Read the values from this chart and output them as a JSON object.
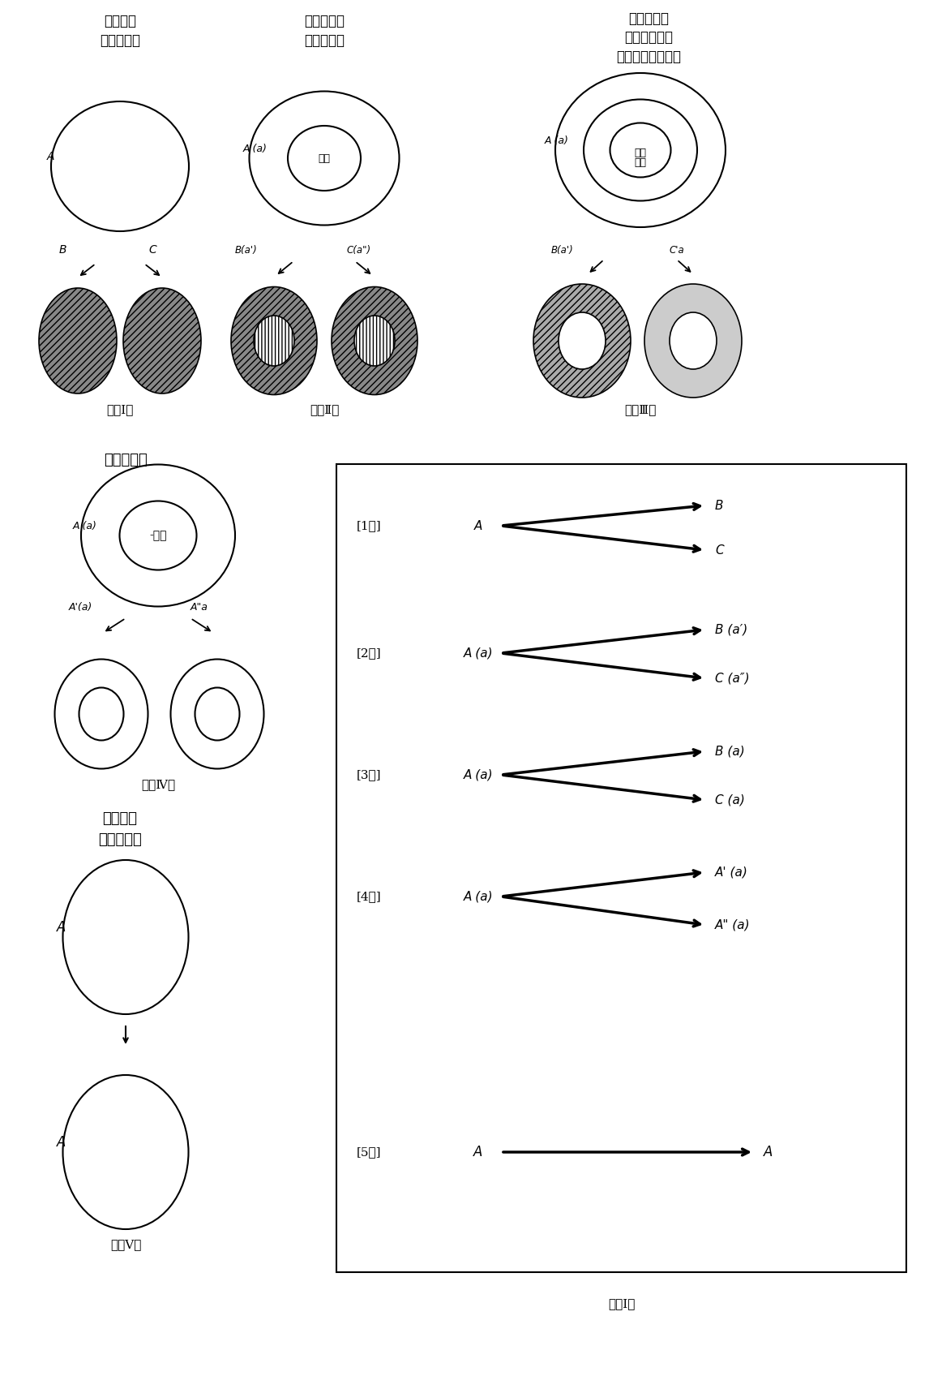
{
  "bg": "#ffffff",
  "s1t1": "形式陶治",
  "s1t2": "普遍的転移",
  "s2t1": "新形式陶治",
  "s2t2": "概念的転移",
  "s3t1": "一般の転移",
  "s3t2": "非特殊的転移",
  "s3t3": "原理，態度の転移",
  "fig1": "『図Ⅰ』",
  "fig2": "『図Ⅱ』",
  "fig3": "『図Ⅲ』",
  "fig4": "『図Ⅳ』",
  "fig5": "『図Ⅴ』",
  "tbl": "『表Ⅰ』",
  "fig4_ttl": "特殊的転移",
  "fig5_t1": "実質陶治",
  "fig5_t2": "同一性転移",
  "nendo2": "概念",
  "genri": "原理",
  "taido": "態度",
  "ginou": "-技能"
}
